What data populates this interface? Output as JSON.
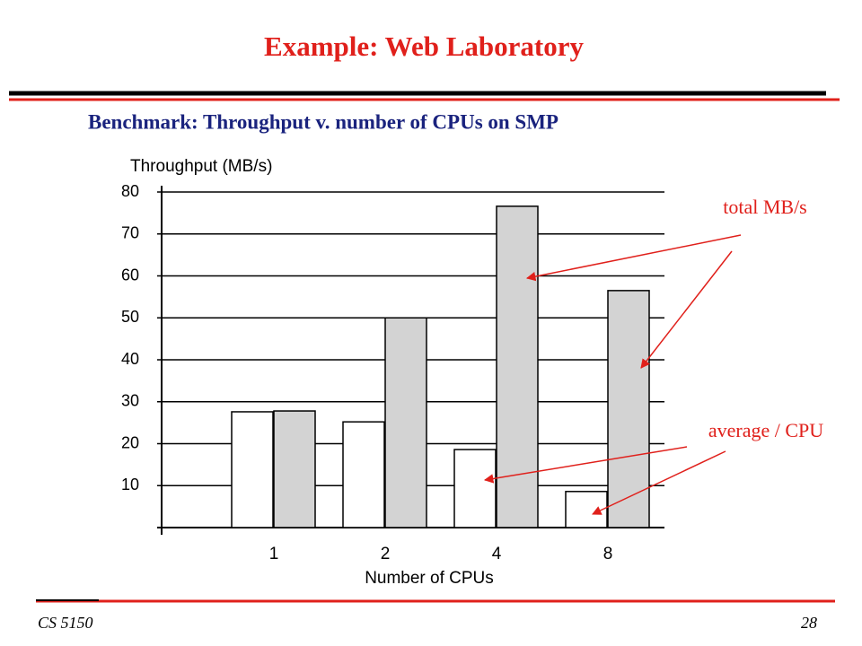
{
  "slide": {
    "title": "Example: Web Laboratory",
    "subtitle": "Benchmark: Throughput v. number of CPUs on SMP",
    "footer": "CS 5150",
    "page_number": "28"
  },
  "chart_data": {
    "type": "bar",
    "y_label": "Throughput (MB/s)",
    "x_label": "Number of CPUs",
    "categories": [
      "1",
      "2",
      "4",
      "8"
    ],
    "series": [
      {
        "name": "average / CPU",
        "color": "#ffffff",
        "values": [
          27.6,
          25.2,
          18.6,
          8.6
        ]
      },
      {
        "name": "total MB/s",
        "color": "#d3d3d3",
        "values": [
          27.8,
          50,
          76.6,
          56.5
        ]
      }
    ],
    "ylim": [
      0,
      80
    ],
    "yticks": [
      10,
      20,
      30,
      40,
      50,
      60,
      70,
      80
    ],
    "grid": true
  }
}
